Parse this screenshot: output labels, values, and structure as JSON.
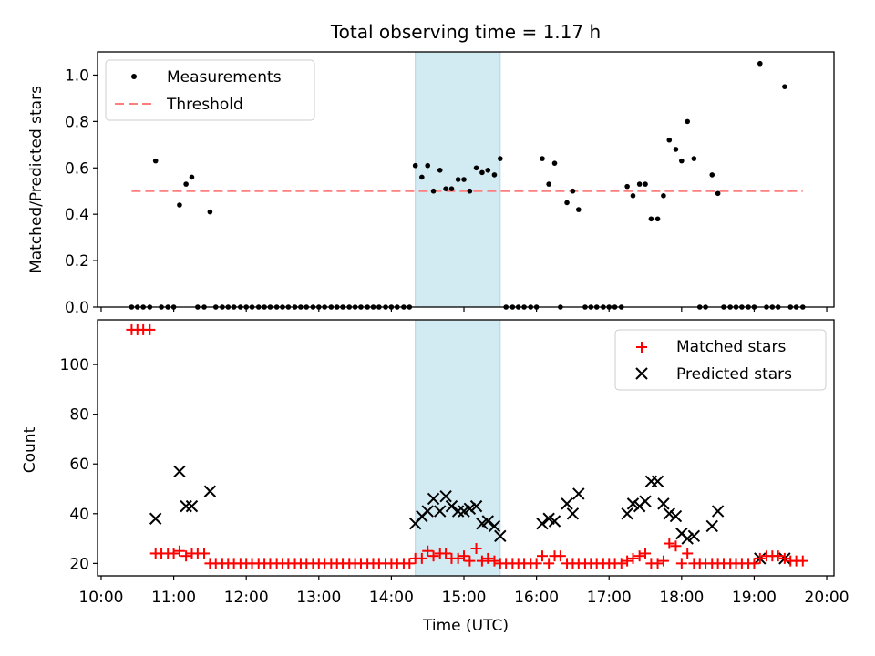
{
  "chart_data": [
    {
      "type": "scatter",
      "title": "Total observing time = 1.17 h",
      "ylabel": "Matched/Predicted stars",
      "ylim": [
        0,
        1.1
      ],
      "yticks": [
        "0.0",
        "0.2",
        "0.4",
        "0.6",
        "0.8",
        "1.0"
      ],
      "xlim": [
        9.95,
        20.1
      ],
      "x_unit": "hours (UTC)",
      "highlight_span": [
        14.33,
        15.5
      ],
      "legend": [
        "Measurements",
        "Threshold"
      ],
      "legend_position": "upper-left",
      "threshold": {
        "value": 0.5,
        "x_range": [
          10.42,
          19.67
        ]
      },
      "series": [
        {
          "name": "Measurements",
          "marker": "dot",
          "color": "#000000",
          "points": [
            [
              10.42,
              0
            ],
            [
              10.5,
              0
            ],
            [
              10.58,
              0
            ],
            [
              10.67,
              0
            ],
            [
              10.75,
              0.63
            ],
            [
              10.83,
              0
            ],
            [
              10.92,
              0
            ],
            [
              11.0,
              0
            ],
            [
              11.08,
              0.44
            ],
            [
              11.17,
              0.53
            ],
            [
              11.25,
              0.56
            ],
            [
              11.33,
              0
            ],
            [
              11.42,
              0
            ],
            [
              11.5,
              0.41
            ],
            [
              11.58,
              0
            ],
            [
              11.67,
              0
            ],
            [
              11.75,
              0
            ],
            [
              11.83,
              0
            ],
            [
              11.92,
              0
            ],
            [
              12.0,
              0
            ],
            [
              12.08,
              0
            ],
            [
              12.17,
              0
            ],
            [
              12.25,
              0
            ],
            [
              12.33,
              0
            ],
            [
              12.42,
              0
            ],
            [
              12.5,
              0
            ],
            [
              12.58,
              0
            ],
            [
              12.67,
              0
            ],
            [
              12.75,
              0
            ],
            [
              12.83,
              0
            ],
            [
              12.92,
              0
            ],
            [
              13.0,
              0
            ],
            [
              13.08,
              0
            ],
            [
              13.17,
              0
            ],
            [
              13.25,
              0
            ],
            [
              13.33,
              0
            ],
            [
              13.42,
              0
            ],
            [
              13.5,
              0
            ],
            [
              13.58,
              0
            ],
            [
              13.67,
              0
            ],
            [
              13.75,
              0
            ],
            [
              13.83,
              0
            ],
            [
              13.92,
              0
            ],
            [
              14.0,
              0
            ],
            [
              14.08,
              0
            ],
            [
              14.17,
              0
            ],
            [
              14.25,
              0
            ],
            [
              14.33,
              0.61
            ],
            [
              14.42,
              0.56
            ],
            [
              14.5,
              0.61
            ],
            [
              14.58,
              0.5
            ],
            [
              14.67,
              0.59
            ],
            [
              14.75,
              0.51
            ],
            [
              14.83,
              0.51
            ],
            [
              14.92,
              0.55
            ],
            [
              15.0,
              0.55
            ],
            [
              15.08,
              0.5
            ],
            [
              15.17,
              0.6
            ],
            [
              15.25,
              0.58
            ],
            [
              15.33,
              0.59
            ],
            [
              15.42,
              0.57
            ],
            [
              15.5,
              0.64
            ],
            [
              15.58,
              0
            ],
            [
              15.67,
              0
            ],
            [
              15.75,
              0
            ],
            [
              15.83,
              0
            ],
            [
              15.92,
              0
            ],
            [
              16.0,
              0
            ],
            [
              16.08,
              0.64
            ],
            [
              16.17,
              0.53
            ],
            [
              16.25,
              0.62
            ],
            [
              16.33,
              0
            ],
            [
              16.42,
              0.45
            ],
            [
              16.5,
              0.5
            ],
            [
              16.58,
              0.42
            ],
            [
              16.67,
              0
            ],
            [
              16.75,
              0
            ],
            [
              16.83,
              0
            ],
            [
              16.92,
              0
            ],
            [
              17.0,
              0
            ],
            [
              17.08,
              0
            ],
            [
              17.17,
              0
            ],
            [
              17.25,
              0.52
            ],
            [
              17.33,
              0.48
            ],
            [
              17.42,
              0.53
            ],
            [
              17.5,
              0.53
            ],
            [
              17.58,
              0.38
            ],
            [
              17.67,
              0.38
            ],
            [
              17.75,
              0.48
            ],
            [
              17.83,
              0.72
            ],
            [
              17.92,
              0.68
            ],
            [
              18.0,
              0.63
            ],
            [
              18.08,
              0.8
            ],
            [
              18.17,
              0.64
            ],
            [
              18.25,
              0
            ],
            [
              18.33,
              0
            ],
            [
              18.42,
              0.57
            ],
            [
              18.5,
              0.49
            ],
            [
              18.58,
              0
            ],
            [
              18.67,
              0
            ],
            [
              18.75,
              0
            ],
            [
              18.83,
              0
            ],
            [
              18.92,
              0
            ],
            [
              19.0,
              0
            ],
            [
              19.08,
              1.05
            ],
            [
              19.17,
              0
            ],
            [
              19.25,
              0
            ],
            [
              19.33,
              0
            ],
            [
              19.42,
              0.95
            ],
            [
              19.5,
              0
            ],
            [
              19.58,
              0
            ],
            [
              19.67,
              0
            ]
          ]
        }
      ],
      "grid": false
    },
    {
      "type": "scatter",
      "xlabel": "Time (UTC)",
      "ylabel": "Count",
      "ylim": [
        15,
        118
      ],
      "yticks": [
        "20",
        "40",
        "60",
        "80",
        "100"
      ],
      "xlim": [
        9.95,
        20.1
      ],
      "xticks": [
        "10:00",
        "11:00",
        "12:00",
        "13:00",
        "14:00",
        "15:00",
        "16:00",
        "17:00",
        "18:00",
        "19:00",
        "20:00"
      ],
      "highlight_span": [
        14.33,
        15.5
      ],
      "legend_position": "upper-right",
      "series": [
        {
          "name": "Matched stars",
          "marker": "plus",
          "color": "#ff0000",
          "points": [
            [
              10.42,
              114
            ],
            [
              10.5,
              114
            ],
            [
              10.58,
              114
            ],
            [
              10.67,
              114
            ],
            [
              10.75,
              24
            ],
            [
              10.83,
              24
            ],
            [
              10.92,
              24
            ],
            [
              11.0,
              24
            ],
            [
              11.08,
              25
            ],
            [
              11.17,
              23
            ],
            [
              11.25,
              24
            ],
            [
              11.33,
              24
            ],
            [
              11.42,
              24
            ],
            [
              11.5,
              20
            ],
            [
              11.58,
              20
            ],
            [
              11.67,
              20
            ],
            [
              11.75,
              20
            ],
            [
              11.83,
              20
            ],
            [
              11.92,
              20
            ],
            [
              12.0,
              20
            ],
            [
              12.08,
              20
            ],
            [
              12.17,
              20
            ],
            [
              12.25,
              20
            ],
            [
              12.33,
              20
            ],
            [
              12.42,
              20
            ],
            [
              12.5,
              20
            ],
            [
              12.58,
              20
            ],
            [
              12.67,
              20
            ],
            [
              12.75,
              20
            ],
            [
              12.83,
              20
            ],
            [
              12.92,
              20
            ],
            [
              13.0,
              20
            ],
            [
              13.08,
              20
            ],
            [
              13.17,
              20
            ],
            [
              13.25,
              20
            ],
            [
              13.33,
              20
            ],
            [
              13.42,
              20
            ],
            [
              13.5,
              20
            ],
            [
              13.58,
              20
            ],
            [
              13.67,
              20
            ],
            [
              13.75,
              20
            ],
            [
              13.83,
              20
            ],
            [
              13.92,
              20
            ],
            [
              14.0,
              20
            ],
            [
              14.08,
              20
            ],
            [
              14.17,
              20
            ],
            [
              14.25,
              20
            ],
            [
              14.33,
              22
            ],
            [
              14.42,
              22
            ],
            [
              14.5,
              25
            ],
            [
              14.58,
              23
            ],
            [
              14.67,
              24
            ],
            [
              14.75,
              24
            ],
            [
              14.83,
              22
            ],
            [
              14.92,
              22
            ],
            [
              15.0,
              23
            ],
            [
              15.08,
              21
            ],
            [
              15.17,
              26
            ],
            [
              15.25,
              21
            ],
            [
              15.33,
              22
            ],
            [
              15.42,
              21
            ],
            [
              15.5,
              20
            ],
            [
              15.58,
              20
            ],
            [
              15.67,
              20
            ],
            [
              15.75,
              20
            ],
            [
              15.83,
              20
            ],
            [
              15.92,
              20
            ],
            [
              16.0,
              20
            ],
            [
              16.08,
              23
            ],
            [
              16.17,
              20
            ],
            [
              16.25,
              23
            ],
            [
              16.33,
              23
            ],
            [
              16.42,
              20
            ],
            [
              16.5,
              20
            ],
            [
              16.58,
              20
            ],
            [
              16.67,
              20
            ],
            [
              16.75,
              20
            ],
            [
              16.83,
              20
            ],
            [
              16.92,
              20
            ],
            [
              17.0,
              20
            ],
            [
              17.08,
              20
            ],
            [
              17.17,
              20
            ],
            [
              17.25,
              21
            ],
            [
              17.33,
              22
            ],
            [
              17.42,
              23
            ],
            [
              17.5,
              24
            ],
            [
              17.58,
              20
            ],
            [
              17.67,
              20
            ],
            [
              17.75,
              21
            ],
            [
              17.83,
              28
            ],
            [
              17.92,
              27
            ],
            [
              18.0,
              20
            ],
            [
              18.08,
              24
            ],
            [
              18.17,
              20
            ],
            [
              18.25,
              20
            ],
            [
              18.33,
              20
            ],
            [
              18.42,
              20
            ],
            [
              18.5,
              20
            ],
            [
              18.58,
              20
            ],
            [
              18.67,
              20
            ],
            [
              18.75,
              20
            ],
            [
              18.83,
              20
            ],
            [
              18.92,
              20
            ],
            [
              19.0,
              20
            ],
            [
              19.08,
              22
            ],
            [
              19.17,
              23
            ],
            [
              19.25,
              23
            ],
            [
              19.33,
              23
            ],
            [
              19.42,
              22
            ],
            [
              19.5,
              21
            ],
            [
              19.58,
              21
            ],
            [
              19.67,
              21
            ]
          ]
        },
        {
          "name": "Predicted stars",
          "marker": "x",
          "color": "#000000",
          "points": [
            [
              10.75,
              38
            ],
            [
              11.08,
              57
            ],
            [
              11.17,
              43
            ],
            [
              11.25,
              43
            ],
            [
              11.5,
              49
            ],
            [
              14.33,
              36
            ],
            [
              14.42,
              39
            ],
            [
              14.5,
              41
            ],
            [
              14.58,
              46
            ],
            [
              14.67,
              41
            ],
            [
              14.75,
              47
            ],
            [
              14.83,
              43
            ],
            [
              14.92,
              41
            ],
            [
              15.0,
              41
            ],
            [
              15.08,
              42
            ],
            [
              15.17,
              43
            ],
            [
              15.25,
              36
            ],
            [
              15.33,
              37
            ],
            [
              15.42,
              35
            ],
            [
              15.5,
              31
            ],
            [
              16.08,
              36
            ],
            [
              16.17,
              38
            ],
            [
              16.25,
              37
            ],
            [
              16.42,
              44
            ],
            [
              16.5,
              40
            ],
            [
              16.58,
              48
            ],
            [
              17.25,
              40
            ],
            [
              17.33,
              44
            ],
            [
              17.42,
              43
            ],
            [
              17.5,
              45
            ],
            [
              17.58,
              53
            ],
            [
              17.67,
              53
            ],
            [
              17.75,
              44
            ],
            [
              17.83,
              40
            ],
            [
              17.92,
              39
            ],
            [
              18.0,
              32
            ],
            [
              18.08,
              30
            ],
            [
              18.17,
              31
            ],
            [
              18.42,
              35
            ],
            [
              18.5,
              41
            ],
            [
              19.08,
              22
            ],
            [
              19.42,
              22
            ]
          ]
        }
      ],
      "grid": false
    }
  ]
}
